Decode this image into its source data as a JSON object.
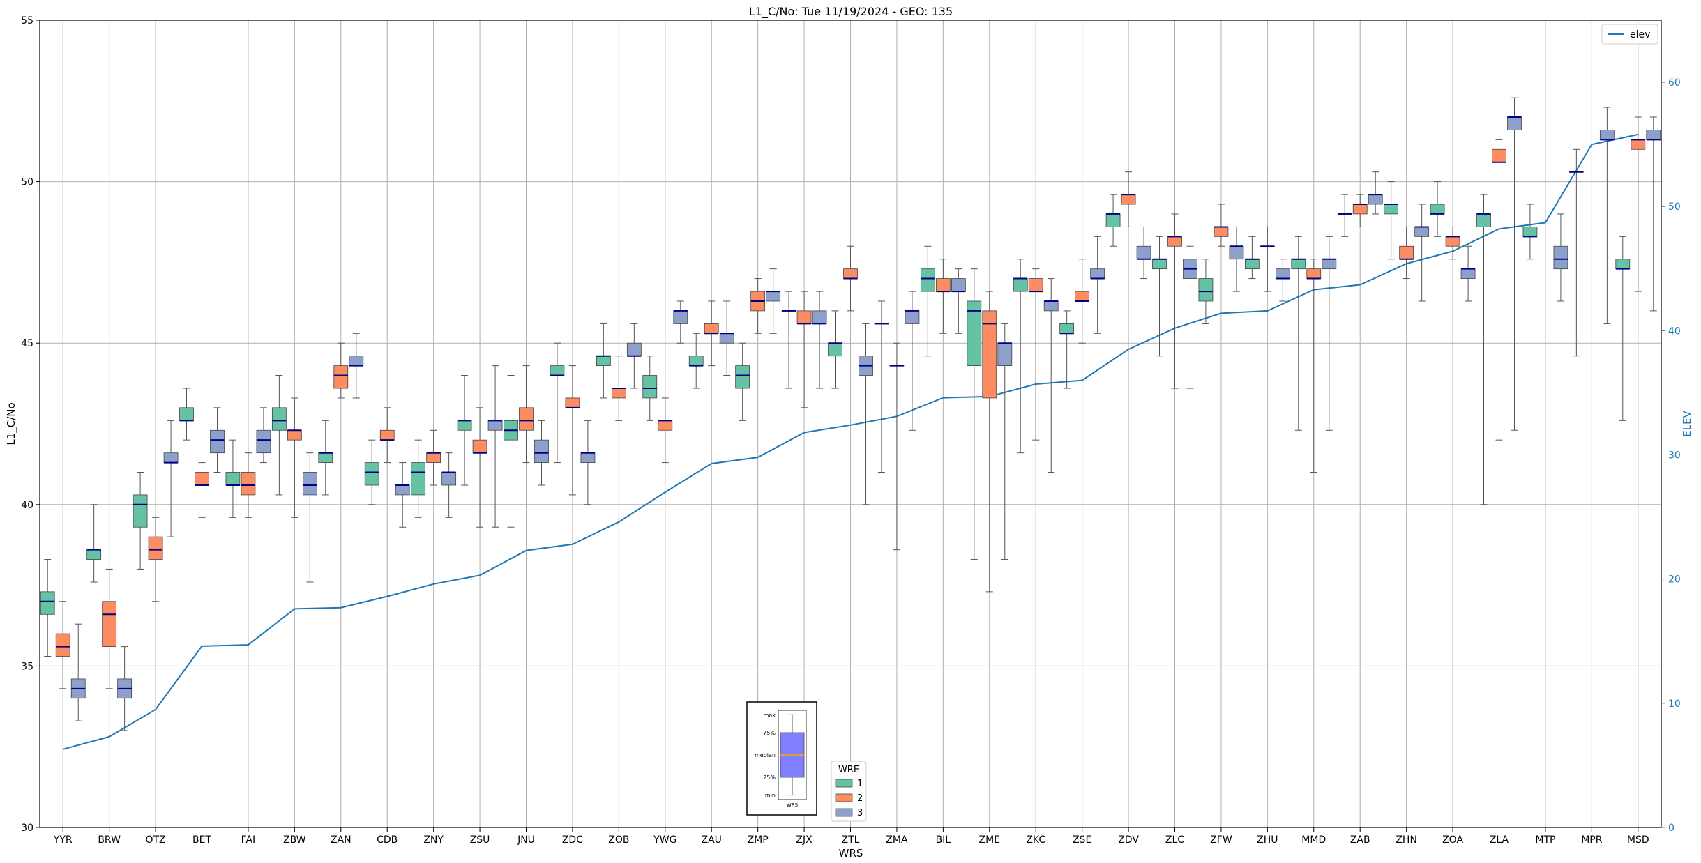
{
  "chart_data": {
    "type": "box",
    "title": "L1_C/No: Tue 11/19/2024 - GEO: 135",
    "xlabel": "WRS",
    "ylabel": "L1_C/No",
    "y2label": "ELEV",
    "ylim": [
      30,
      55
    ],
    "y2lim": [
      0,
      65
    ],
    "yticks": [
      30,
      35,
      40,
      45,
      50,
      55
    ],
    "y2ticks": [
      0,
      10,
      20,
      30,
      40,
      50,
      60
    ],
    "grid": true,
    "categories": [
      "YYR",
      "BRW",
      "OTZ",
      "BET",
      "FAI",
      "ZBW",
      "ZAN",
      "CDB",
      "ZNY",
      "ZSU",
      "JNU",
      "ZDC",
      "ZOB",
      "YWG",
      "ZAU",
      "ZMP",
      "ZJX",
      "ZTL",
      "ZMA",
      "BIL",
      "ZME",
      "ZKC",
      "ZSE",
      "ZDV",
      "ZLC",
      "ZFW",
      "ZHU",
      "MMD",
      "ZAB",
      "ZHN",
      "ZOA",
      "ZLA",
      "MTP",
      "MPR",
      "MSD"
    ],
    "colors": {
      "1": "#66c2a5",
      "2": "#fc8d62",
      "3": "#8da0cb",
      "elev": "#1f77b4",
      "median": "#000080",
      "grid": "#b0b0b0"
    },
    "boxes": {
      "1": [
        {
          "c": "YYR",
          "whislo": 35.3,
          "q1": 36.6,
          "med": 37.0,
          "q3": 37.3,
          "whishi": 38.3
        },
        {
          "c": "BRW",
          "whislo": 37.6,
          "q1": 38.3,
          "med": 38.6,
          "q3": 38.6,
          "whishi": 40.0
        },
        {
          "c": "OTZ",
          "whislo": 38.0,
          "q1": 39.3,
          "med": 40.0,
          "q3": 40.3,
          "whishi": 41.0
        },
        {
          "c": "BET",
          "whislo": 42.0,
          "q1": 42.6,
          "med": 42.6,
          "q3": 43.0,
          "whishi": 43.6
        },
        {
          "c": "FAI",
          "whislo": 39.6,
          "q1": 40.6,
          "med": 40.6,
          "q3": 41.0,
          "whishi": 42.0
        },
        {
          "c": "ZBW",
          "whislo": 40.3,
          "q1": 42.3,
          "med": 42.6,
          "q3": 43.0,
          "whishi": 44.0
        },
        {
          "c": "ZAN",
          "whislo": 40.3,
          "q1": 41.3,
          "med": 41.6,
          "q3": 41.6,
          "whishi": 42.6
        },
        {
          "c": "CDB",
          "whislo": 40.0,
          "q1": 40.6,
          "med": 41.0,
          "q3": 41.3,
          "whishi": 42.0
        },
        {
          "c": "ZNY",
          "whislo": 39.6,
          "q1": 40.3,
          "med": 41.0,
          "q3": 41.3,
          "whishi": 42.0
        },
        {
          "c": "ZSU",
          "whislo": 40.6,
          "q1": 42.3,
          "med": 42.6,
          "q3": 42.6,
          "whishi": 44.0
        },
        {
          "c": "JNU",
          "whislo": 39.3,
          "q1": 42.0,
          "med": 42.3,
          "q3": 42.6,
          "whishi": 44.0
        },
        {
          "c": "ZDC",
          "whislo": 41.3,
          "q1": 44.0,
          "med": 44.0,
          "q3": 44.3,
          "whishi": 45.0
        },
        {
          "c": "ZOB",
          "whislo": 43.3,
          "q1": 44.3,
          "med": 44.6,
          "q3": 44.6,
          "whishi": 45.6
        },
        {
          "c": "YWG",
          "whislo": 42.6,
          "q1": 43.3,
          "med": 43.6,
          "q3": 44.0,
          "whishi": 44.6
        },
        {
          "c": "ZAU",
          "whislo": 43.6,
          "q1": 44.3,
          "med": 44.3,
          "q3": 44.6,
          "whishi": 45.3
        },
        {
          "c": "ZMP",
          "whislo": 42.6,
          "q1": 43.6,
          "med": 44.0,
          "q3": 44.3,
          "whishi": 45.0
        },
        {
          "c": "ZJX",
          "whislo": 43.6,
          "q1": 46.0,
          "med": 46.0,
          "q3": 46.0,
          "whishi": 46.6
        },
        {
          "c": "ZTL",
          "whislo": 43.6,
          "q1": 44.6,
          "med": 45.0,
          "q3": 45.0,
          "whishi": 46.0
        },
        {
          "c": "ZMA",
          "whislo": 41.0,
          "q1": 45.6,
          "med": 45.6,
          "q3": 45.6,
          "whishi": 46.3
        },
        {
          "c": "BIL",
          "whislo": 44.6,
          "q1": 46.6,
          "med": 47.0,
          "q3": 47.3,
          "whishi": 48.0
        },
        {
          "c": "ZME",
          "whislo": 38.3,
          "q1": 44.3,
          "med": 46.0,
          "q3": 46.3,
          "whishi": 47.3
        },
        {
          "c": "ZKC",
          "whislo": 41.6,
          "q1": 46.6,
          "med": 47.0,
          "q3": 47.0,
          "whishi": 47.6
        },
        {
          "c": "ZSE",
          "whislo": 43.6,
          "q1": 45.3,
          "med": 45.3,
          "q3": 45.6,
          "whishi": 46.0
        },
        {
          "c": "ZDV",
          "whislo": 48.0,
          "q1": 48.6,
          "med": 49.0,
          "q3": 49.0,
          "whishi": 49.6
        },
        {
          "c": "ZLC",
          "whislo": 44.6,
          "q1": 47.3,
          "med": 47.6,
          "q3": 47.6,
          "whishi": 48.3
        },
        {
          "c": "ZFW",
          "whislo": 45.6,
          "q1": 46.3,
          "med": 46.6,
          "q3": 47.0,
          "whishi": 47.6
        },
        {
          "c": "ZHU",
          "whislo": 47.0,
          "q1": 47.3,
          "med": 47.6,
          "q3": 47.6,
          "whishi": 48.3
        },
        {
          "c": "MMD",
          "whislo": 42.3,
          "q1": 47.3,
          "med": 47.6,
          "q3": 47.6,
          "whishi": 48.3
        },
        {
          "c": "ZAB",
          "whislo": 48.3,
          "q1": 49.0,
          "med": 49.0,
          "q3": 49.0,
          "whishi": 49.6
        },
        {
          "c": "ZHN",
          "whislo": 47.6,
          "q1": 49.0,
          "med": 49.3,
          "q3": 49.3,
          "whishi": 50.0
        },
        {
          "c": "ZOA",
          "whislo": 48.3,
          "q1": 49.0,
          "med": 49.0,
          "q3": 49.3,
          "whishi": 50.0
        },
        {
          "c": "ZLA",
          "whislo": 40.0,
          "q1": 48.6,
          "med": 49.0,
          "q3": 49.0,
          "whishi": 49.6
        },
        {
          "c": "MTP",
          "whislo": 47.6,
          "q1": 48.3,
          "med": 48.3,
          "q3": 48.6,
          "whishi": 49.3
        },
        {
          "c": "MPR",
          "whislo": 44.6,
          "q1": 50.3,
          "med": 50.3,
          "q3": 50.3,
          "whishi": 51.0
        },
        {
          "c": "MSD",
          "whislo": 42.6,
          "q1": 47.3,
          "med": 47.3,
          "q3": 47.6,
          "whishi": 48.3
        }
      ],
      "2": [
        {
          "c": "YYR",
          "whislo": 34.3,
          "q1": 35.3,
          "med": 35.6,
          "q3": 36.0,
          "whishi": 37.0
        },
        {
          "c": "BRW",
          "whislo": 34.3,
          "q1": 35.6,
          "med": 36.6,
          "q3": 37.0,
          "whishi": 38.0
        },
        {
          "c": "OTZ",
          "whislo": 37.0,
          "q1": 38.3,
          "med": 38.6,
          "q3": 39.0,
          "whishi": 39.6
        },
        {
          "c": "BET",
          "whislo": 39.6,
          "q1": 40.6,
          "med": 40.6,
          "q3": 41.0,
          "whishi": 41.3
        },
        {
          "c": "FAI",
          "whislo": 39.6,
          "q1": 40.3,
          "med": 40.6,
          "q3": 41.0,
          "whishi": 41.6
        },
        {
          "c": "ZBW",
          "whislo": 39.6,
          "q1": 42.0,
          "med": 42.3,
          "q3": 42.3,
          "whishi": 43.3
        },
        {
          "c": "ZAN",
          "whislo": 43.3,
          "q1": 43.6,
          "med": 44.0,
          "q3": 44.3,
          "whishi": 45.0
        },
        {
          "c": "CDB",
          "whislo": 41.3,
          "q1": 42.0,
          "med": 42.0,
          "q3": 42.3,
          "whishi": 43.0
        },
        {
          "c": "ZNY",
          "whislo": 40.6,
          "q1": 41.3,
          "med": 41.6,
          "q3": 41.6,
          "whishi": 42.3
        },
        {
          "c": "ZSU",
          "whislo": 39.3,
          "q1": 41.6,
          "med": 41.6,
          "q3": 42.0,
          "whishi": 43.0
        },
        {
          "c": "JNU",
          "whislo": 41.3,
          "q1": 42.3,
          "med": 42.6,
          "q3": 43.0,
          "whishi": 44.3
        },
        {
          "c": "ZDC",
          "whislo": 40.3,
          "q1": 43.0,
          "med": 43.0,
          "q3": 43.3,
          "whishi": 44.3
        },
        {
          "c": "ZOB",
          "whislo": 42.6,
          "q1": 43.3,
          "med": 43.6,
          "q3": 43.6,
          "whishi": 44.6
        },
        {
          "c": "YWG",
          "whislo": 41.3,
          "q1": 42.3,
          "med": 42.6,
          "q3": 42.6,
          "whishi": 43.3
        },
        {
          "c": "ZAU",
          "whislo": 44.3,
          "q1": 45.3,
          "med": 45.3,
          "q3": 45.6,
          "whishi": 46.3
        },
        {
          "c": "ZMP",
          "whislo": 45.3,
          "q1": 46.0,
          "med": 46.3,
          "q3": 46.6,
          "whishi": 47.0
        },
        {
          "c": "ZJX",
          "whislo": 43.0,
          "q1": 45.6,
          "med": 45.6,
          "q3": 46.0,
          "whishi": 46.6
        },
        {
          "c": "ZTL",
          "whislo": 46.0,
          "q1": 47.0,
          "med": 47.0,
          "q3": 47.3,
          "whishi": 48.0
        },
        {
          "c": "ZMA",
          "whislo": 38.6,
          "q1": 44.3,
          "med": 44.3,
          "q3": 44.3,
          "whishi": 45.0
        },
        {
          "c": "BIL",
          "whislo": 45.3,
          "q1": 46.6,
          "med": 46.6,
          "q3": 47.0,
          "whishi": 47.6
        },
        {
          "c": "ZME",
          "whislo": 37.3,
          "q1": 43.3,
          "med": 45.6,
          "q3": 46.0,
          "whishi": 46.6
        },
        {
          "c": "ZKC",
          "whislo": 42.0,
          "q1": 46.6,
          "med": 46.6,
          "q3": 47.0,
          "whishi": 47.3
        },
        {
          "c": "ZSE",
          "whislo": 45.0,
          "q1": 46.3,
          "med": 46.3,
          "q3": 46.6,
          "whishi": 47.6
        },
        {
          "c": "ZDV",
          "whislo": 48.6,
          "q1": 49.3,
          "med": 49.6,
          "q3": 49.6,
          "whishi": 50.3
        },
        {
          "c": "ZLC",
          "whislo": 43.6,
          "q1": 48.0,
          "med": 48.3,
          "q3": 48.3,
          "whishi": 49.0
        },
        {
          "c": "ZFW",
          "whislo": 48.0,
          "q1": 48.3,
          "med": 48.6,
          "q3": 48.6,
          "whishi": 49.3
        },
        {
          "c": "ZHU",
          "whislo": 46.6,
          "q1": 48.0,
          "med": 48.0,
          "q3": 48.0,
          "whishi": 48.6
        },
        {
          "c": "MMD",
          "whislo": 41.0,
          "q1": 47.0,
          "med": 47.0,
          "q3": 47.3,
          "whishi": 47.6
        },
        {
          "c": "ZAB",
          "whislo": 48.6,
          "q1": 49.0,
          "med": 49.3,
          "q3": 49.3,
          "whishi": 49.6
        },
        {
          "c": "ZHN",
          "whislo": 47.0,
          "q1": 47.6,
          "med": 47.6,
          "q3": 48.0,
          "whishi": 48.6
        },
        {
          "c": "ZOA",
          "whislo": 47.6,
          "q1": 48.0,
          "med": 48.3,
          "q3": 48.3,
          "whishi": 48.6
        },
        {
          "c": "ZLA",
          "whislo": 42.0,
          "q1": 50.6,
          "med": 50.6,
          "q3": 51.0,
          "whishi": 51.3
        },
        {
          "c": "MSD",
          "whislo": 46.6,
          "q1": 51.0,
          "med": 51.3,
          "q3": 51.3,
          "whishi": 52.0
        }
      ],
      "3": [
        {
          "c": "YYR",
          "whislo": 33.3,
          "q1": 34.0,
          "med": 34.3,
          "q3": 34.6,
          "whishi": 36.3
        },
        {
          "c": "BRW",
          "whislo": 33.0,
          "q1": 34.0,
          "med": 34.3,
          "q3": 34.6,
          "whishi": 35.6
        },
        {
          "c": "OTZ",
          "whislo": 39.0,
          "q1": 41.3,
          "med": 41.3,
          "q3": 41.6,
          "whishi": 42.6
        },
        {
          "c": "BET",
          "whislo": 41.0,
          "q1": 41.6,
          "med": 42.0,
          "q3": 42.3,
          "whishi": 43.0
        },
        {
          "c": "FAI",
          "whislo": 41.3,
          "q1": 41.6,
          "med": 42.0,
          "q3": 42.3,
          "whishi": 43.0
        },
        {
          "c": "ZBW",
          "whislo": 37.6,
          "q1": 40.3,
          "med": 40.6,
          "q3": 41.0,
          "whishi": 41.6
        },
        {
          "c": "ZAN",
          "whislo": 43.3,
          "q1": 44.3,
          "med": 44.3,
          "q3": 44.6,
          "whishi": 45.3
        },
        {
          "c": "CDB",
          "whislo": 39.3,
          "q1": 40.3,
          "med": 40.6,
          "q3": 40.6,
          "whishi": 41.3
        },
        {
          "c": "ZNY",
          "whislo": 39.6,
          "q1": 40.6,
          "med": 41.0,
          "q3": 41.0,
          "whishi": 41.6
        },
        {
          "c": "ZSU",
          "whislo": 39.3,
          "q1": 42.3,
          "med": 42.6,
          "q3": 42.6,
          "whishi": 44.3
        },
        {
          "c": "JNU",
          "whislo": 40.6,
          "q1": 41.3,
          "med": 41.6,
          "q3": 42.0,
          "whishi": 42.6
        },
        {
          "c": "ZDC",
          "whislo": 40.0,
          "q1": 41.3,
          "med": 41.6,
          "q3": 41.6,
          "whishi": 42.6
        },
        {
          "c": "ZOB",
          "whislo": 43.6,
          "q1": 44.6,
          "med": 44.6,
          "q3": 45.0,
          "whishi": 45.6
        },
        {
          "c": "YWG",
          "whislo": 45.0,
          "q1": 45.6,
          "med": 46.0,
          "q3": 46.0,
          "whishi": 46.3
        },
        {
          "c": "ZAU",
          "whislo": 44.0,
          "q1": 45.0,
          "med": 45.3,
          "q3": 45.3,
          "whishi": 46.3
        },
        {
          "c": "ZMP",
          "whislo": 45.3,
          "q1": 46.3,
          "med": 46.6,
          "q3": 46.6,
          "whishi": 47.3
        },
        {
          "c": "ZJX",
          "whislo": 43.6,
          "q1": 45.6,
          "med": 45.6,
          "q3": 46.0,
          "whishi": 46.6
        },
        {
          "c": "ZTL",
          "whislo": 40.0,
          "q1": 44.0,
          "med": 44.3,
          "q3": 44.6,
          "whishi": 45.6
        },
        {
          "c": "ZMA",
          "whislo": 42.3,
          "q1": 45.6,
          "med": 46.0,
          "q3": 46.0,
          "whishi": 46.6
        },
        {
          "c": "BIL",
          "whislo": 45.3,
          "q1": 46.6,
          "med": 46.6,
          "q3": 47.0,
          "whishi": 47.3
        },
        {
          "c": "ZME",
          "whislo": 38.3,
          "q1": 44.3,
          "med": 45.0,
          "q3": 45.0,
          "whishi": 45.6
        },
        {
          "c": "ZKC",
          "whislo": 41.0,
          "q1": 46.0,
          "med": 46.3,
          "q3": 46.3,
          "whishi": 47.0
        },
        {
          "c": "ZSE",
          "whislo": 45.3,
          "q1": 47.0,
          "med": 47.0,
          "q3": 47.3,
          "whishi": 48.3
        },
        {
          "c": "ZDV",
          "whislo": 47.0,
          "q1": 47.6,
          "med": 47.6,
          "q3": 48.0,
          "whishi": 48.6
        },
        {
          "c": "ZLC",
          "whislo": 43.6,
          "q1": 47.0,
          "med": 47.3,
          "q3": 47.6,
          "whishi": 48.0
        },
        {
          "c": "ZFW",
          "whislo": 46.6,
          "q1": 47.6,
          "med": 48.0,
          "q3": 48.0,
          "whishi": 48.6
        },
        {
          "c": "ZHU",
          "whislo": 46.3,
          "q1": 47.0,
          "med": 47.0,
          "q3": 47.3,
          "whishi": 47.6
        },
        {
          "c": "MMD",
          "whislo": 42.3,
          "q1": 47.3,
          "med": 47.6,
          "q3": 47.6,
          "whishi": 48.3
        },
        {
          "c": "ZAB",
          "whislo": 49.0,
          "q1": 49.3,
          "med": 49.6,
          "q3": 49.6,
          "whishi": 50.3
        },
        {
          "c": "ZHN",
          "whislo": 46.3,
          "q1": 48.3,
          "med": 48.6,
          "q3": 48.6,
          "whishi": 49.3
        },
        {
          "c": "ZOA",
          "whislo": 46.3,
          "q1": 47.0,
          "med": 47.3,
          "q3": 47.3,
          "whishi": 48.0
        },
        {
          "c": "ZLA",
          "whislo": 42.3,
          "q1": 51.6,
          "med": 52.0,
          "q3": 52.0,
          "whishi": 52.6
        },
        {
          "c": "MTP",
          "whislo": 46.3,
          "q1": 47.3,
          "med": 47.6,
          "q3": 48.0,
          "whishi": 49.0
        },
        {
          "c": "MPR",
          "whislo": 45.6,
          "q1": 51.3,
          "med": 51.3,
          "q3": 51.6,
          "whishi": 52.3
        },
        {
          "c": "MSD",
          "whislo": 46.0,
          "q1": 51.3,
          "med": 51.3,
          "q3": 51.6,
          "whishi": 52.0
        }
      ]
    },
    "elev_series": {
      "name": "elev",
      "values": [
        6.3,
        7.3,
        9.5,
        14.6,
        14.7,
        17.6,
        17.7,
        18.6,
        19.6,
        20.3,
        22.3,
        22.8,
        24.6,
        27.0,
        29.3,
        29.8,
        31.8,
        32.4,
        33.1,
        34.6,
        34.7,
        35.7,
        36.0,
        38.5,
        40.2,
        41.4,
        41.6,
        43.3,
        43.7,
        45.4,
        46.4,
        48.2,
        48.7,
        55.0,
        55.8
      ]
    },
    "box_legend": {
      "title": "WRE",
      "entries": [
        "1",
        "2",
        "3"
      ]
    },
    "line_legend": {
      "entries": [
        "elev"
      ]
    },
    "key_inset": {
      "labels": [
        "max",
        "75%",
        "median",
        "25%",
        "min"
      ],
      "xlabel": "WRS",
      "sample": {
        "whislo": 0.05,
        "q1": 0.25,
        "med": 0.5,
        "q3": 0.75,
        "whishi": 0.95
      },
      "box_color": "#7f7fff",
      "median_color": "#ffa500"
    }
  }
}
